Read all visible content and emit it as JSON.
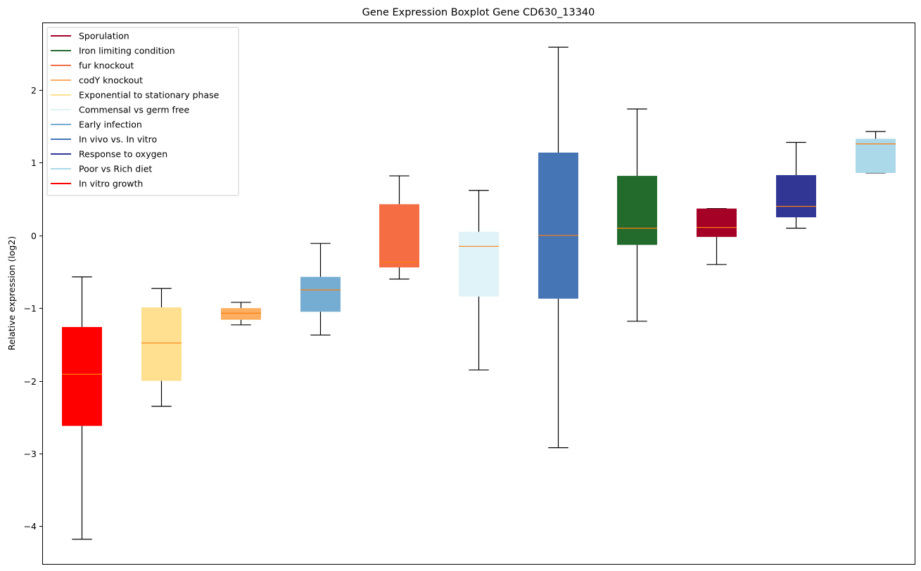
{
  "chart_data": {
    "type": "boxplot",
    "title": "Gene Expression Boxplot Gene CD630_13340",
    "xlabel": "",
    "ylabel": "Relative expression (log2)",
    "ylim": [
      -4.52,
      2.93
    ],
    "yticks": [
      -4,
      -3,
      -2,
      -1,
      0,
      1,
      2
    ],
    "ytick_labels": [
      "−4",
      "−3",
      "−2",
      "−1",
      "0",
      "1",
      "2"
    ],
    "grid": false,
    "legend_position": "top-left",
    "median_color": "#ff7f0e",
    "legend": [
      {
        "label": "Sporulation",
        "color": "#a50026"
      },
      {
        "label": "Iron limiting condition",
        "color": "#236b2d"
      },
      {
        "label": "fur knockout",
        "color": "#f46d43"
      },
      {
        "label": "codY knockout",
        "color": "#fdae61"
      },
      {
        "label": "Exponential to stationary phase",
        "color": "#fee090"
      },
      {
        "label": "Commensal vs germ free",
        "color": "#e0f3f8"
      },
      {
        "label": "Early infection",
        "color": "#74add1"
      },
      {
        "label": "In vivo vs. In vitro",
        "color": "#4575b4"
      },
      {
        "label": "Response to oxygen",
        "color": "#313695"
      },
      {
        "label": "Poor vs Rich diet",
        "color": "#abd9e9"
      },
      {
        "label": "In vitro growth",
        "color": "#ff0000"
      }
    ],
    "boxes": [
      {
        "group": "In vitro growth",
        "color": "#ff0000",
        "whisker_low": -4.18,
        "q1": -2.62,
        "median": -1.91,
        "q3": -1.26,
        "whisker_high": -0.57
      },
      {
        "group": "Exponential to stationary phase",
        "color": "#fee090",
        "whisker_low": -2.35,
        "q1": -2.0,
        "median": -1.48,
        "q3": -0.99,
        "whisker_high": -0.73
      },
      {
        "group": "codY knockout",
        "color": "#fdae61",
        "whisker_low": -1.23,
        "q1": -1.16,
        "median": -1.07,
        "q3": -1.0,
        "whisker_high": -0.92
      },
      {
        "group": "Early infection",
        "color": "#74add1",
        "whisker_low": -1.37,
        "q1": -1.05,
        "median": -0.75,
        "q3": -0.57,
        "whisker_high": -0.11
      },
      {
        "group": "fur knockout",
        "color": "#f46d43",
        "whisker_low": -0.6,
        "q1": -0.44,
        "median": -0.37,
        "q3": 0.43,
        "whisker_high": 0.82
      },
      {
        "group": "Commensal vs germ free",
        "color": "#e0f3f8",
        "whisker_low": -1.85,
        "q1": -0.84,
        "median": -0.15,
        "q3": 0.05,
        "whisker_high": 0.62
      },
      {
        "group": "In vivo vs. In vitro",
        "color": "#4575b4",
        "whisker_low": -2.92,
        "q1": -0.87,
        "median": 0.0,
        "q3": 1.14,
        "whisker_high": 2.59
      },
      {
        "group": "Iron limiting condition",
        "color": "#236b2d",
        "whisker_low": -1.18,
        "q1": -0.13,
        "median": 0.1,
        "q3": 0.82,
        "whisker_high": 1.74
      },
      {
        "group": "Sporulation",
        "color": "#a50026",
        "whisker_low": -0.4,
        "q1": -0.02,
        "median": 0.11,
        "q3": 0.37,
        "whisker_high": 0.37
      },
      {
        "group": "Response to oxygen",
        "color": "#313695",
        "whisker_low": 0.1,
        "q1": 0.25,
        "median": 0.4,
        "q3": 0.83,
        "whisker_high": 1.28
      },
      {
        "group": "Poor vs Rich diet",
        "color": "#abd9e9",
        "whisker_low": 0.86,
        "q1": 0.86,
        "median": 1.26,
        "q3": 1.33,
        "whisker_high": 1.43
      }
    ]
  }
}
